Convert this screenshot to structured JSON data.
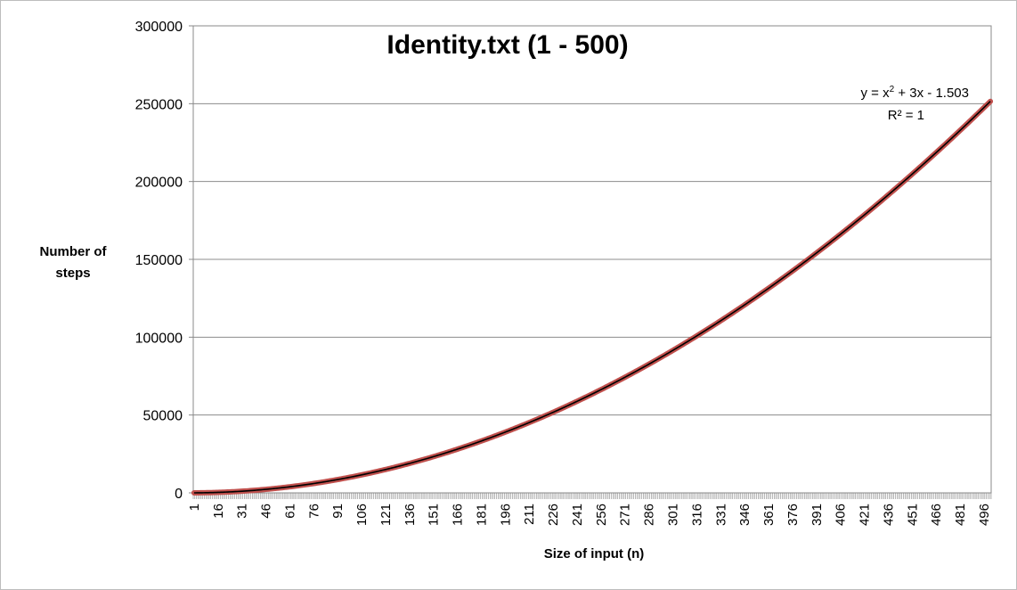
{
  "chart_data": {
    "type": "line",
    "title": "Identity.txt (1 - 500)",
    "xlabel": "Size of input (n)",
    "ylabel_lines": [
      "Number of",
      "steps"
    ],
    "x_range": [
      1,
      500
    ],
    "x_tick_labels": [
      "1",
      "16",
      "31",
      "46",
      "61",
      "76",
      "91",
      "106",
      "121",
      "136",
      "151",
      "166",
      "181",
      "196",
      "211",
      "226",
      "241",
      "256",
      "271",
      "286",
      "301",
      "316",
      "331",
      "346",
      "361",
      "376",
      "391",
      "406",
      "421",
      "436",
      "451",
      "466",
      "481",
      "496"
    ],
    "ylim": [
      0,
      300000
    ],
    "y_tick_labels": [
      "0",
      "50000",
      "100000",
      "150000",
      "200000",
      "250000",
      "300000"
    ],
    "y_ticks": [
      0,
      50000,
      100000,
      150000,
      200000,
      250000,
      300000
    ],
    "grid": "horizontal",
    "series": [
      {
        "formula": "y = x² + 3x - 1.5",
        "color": "#c0504d",
        "marker": "dot"
      }
    ],
    "trendline": {
      "equation_text": "y = x² + 3x - 1.503",
      "r_squared_text": "R² = 1",
      "color": "#000000",
      "coefficients": {
        "a": 1,
        "b": 3,
        "c": -1.503
      }
    }
  }
}
